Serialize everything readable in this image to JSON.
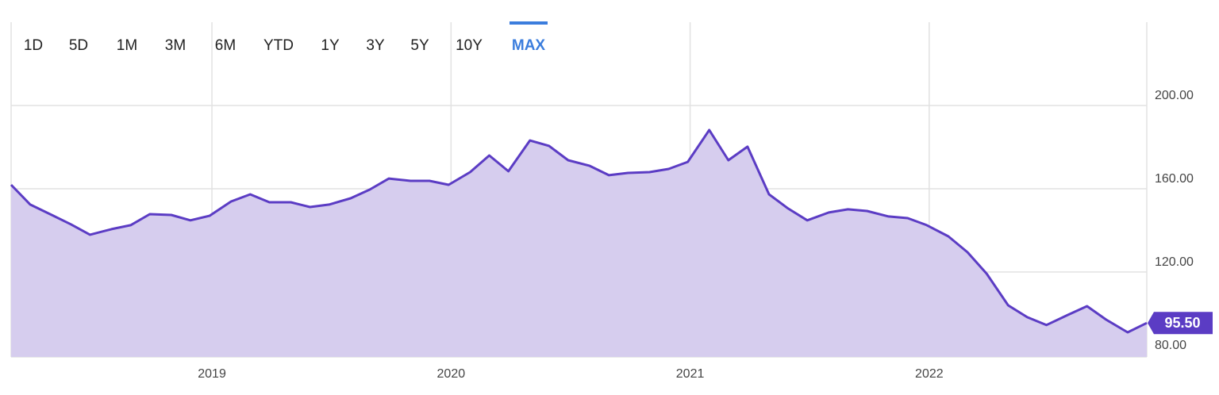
{
  "ranges": [
    "1D",
    "5D",
    "1M",
    "3M",
    "6M",
    "YTD",
    "1Y",
    "3Y",
    "5Y",
    "10Y",
    "MAX"
  ],
  "selected_range": "MAX",
  "chart_data": {
    "type": "area",
    "x": [
      2018.16,
      2018.24,
      2018.33,
      2018.41,
      2018.49,
      2018.58,
      2018.66,
      2018.74,
      2018.83,
      2018.91,
      2018.99,
      2019.08,
      2019.16,
      2019.24,
      2019.33,
      2019.41,
      2019.49,
      2019.58,
      2019.66,
      2019.74,
      2019.83,
      2019.91,
      2019.99,
      2020.08,
      2020.16,
      2020.24,
      2020.33,
      2020.41,
      2020.49,
      2020.58,
      2020.66,
      2020.74,
      2020.83,
      2020.91,
      2020.99,
      2021.08,
      2021.16,
      2021.24,
      2021.33,
      2021.41,
      2021.49,
      2021.58,
      2021.66,
      2021.74,
      2021.83,
      2021.91,
      2021.99,
      2022.08,
      2022.16,
      2022.24,
      2022.33,
      2022.41,
      2022.49,
      2022.58,
      2022.66,
      2022.74,
      2022.83,
      2022.91
    ],
    "values": [
      161.9,
      152.4,
      147.4,
      142.9,
      137.9,
      140.6,
      142.5,
      147.8,
      147.4,
      144.8,
      147.0,
      153.9,
      157.3,
      153.5,
      153.5,
      151.2,
      152.4,
      155.4,
      159.6,
      164.9,
      163.8,
      163.8,
      161.9,
      168.0,
      176.0,
      168.4,
      183.2,
      180.6,
      173.7,
      171.0,
      166.5,
      167.6,
      168.0,
      169.5,
      172.9,
      188.2,
      173.7,
      180.2,
      157.3,
      150.5,
      144.8,
      148.6,
      150.1,
      149.3,
      146.7,
      145.9,
      142.5,
      137.1,
      129.5,
      119.2,
      104.0,
      98.3,
      94.5,
      99.4,
      103.6,
      97.1,
      91.0,
      95.5
    ],
    "value_labels": [
      null,
      null,
      null,
      null,
      null,
      null,
      null,
      null,
      null,
      null,
      null,
      null,
      null,
      null,
      null,
      null,
      null,
      null,
      null,
      null,
      null,
      null,
      null,
      null,
      null,
      null,
      null,
      null,
      null,
      null,
      null,
      null,
      null,
      null,
      null,
      null,
      null,
      null,
      null,
      null,
      null,
      null,
      null,
      null,
      null,
      null,
      null,
      null,
      null,
      null,
      null,
      null,
      null,
      null,
      null,
      null,
      null,
      "95.50"
    ],
    "color": "#5b3cc4",
    "fill_color": "#d6cdee",
    "xlim": [
      2018.16,
      2022.91
    ],
    "xticks": [
      2019,
      2020,
      2021,
      2022
    ],
    "ylim": [
      79.2,
      240
    ],
    "yticks": [
      {
        "value": 80,
        "label": "80.00"
      },
      {
        "value": 120,
        "label": "120.00"
      },
      {
        "value": 160,
        "label": "160.00"
      },
      {
        "value": 200,
        "label": "200.00"
      }
    ],
    "grid": true
  }
}
